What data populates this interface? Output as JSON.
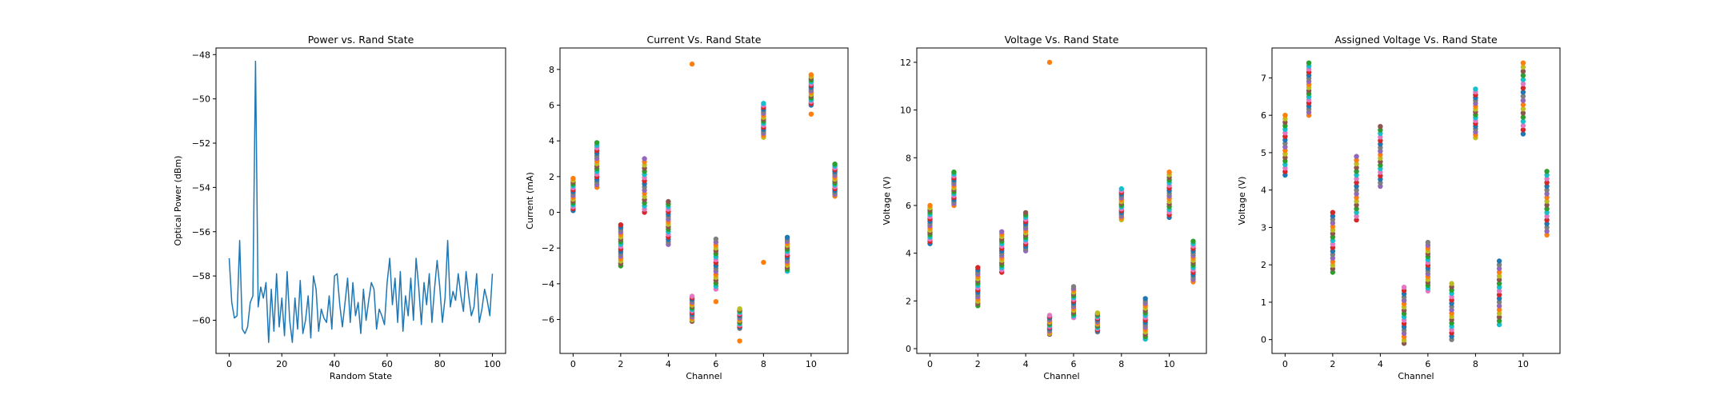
{
  "chart_data": [
    {
      "type": "line",
      "title": "Power vs. Rand State",
      "xlabel": "Random State",
      "ylabel": "Optical Power (dBm)",
      "xlim": [
        -5,
        105
      ],
      "ylim": [
        -61.5,
        -47.7
      ],
      "xticks": [
        0,
        20,
        40,
        60,
        80,
        100
      ],
      "yticks": [
        -60,
        -58,
        -56,
        -54,
        -52,
        -50,
        -48
      ],
      "grid": false,
      "color": "#1f77b4",
      "series": [
        {
          "x": [
            0,
            1,
            2,
            3,
            4,
            5,
            6,
            7,
            8,
            9,
            10,
            11,
            12,
            13,
            14,
            15,
            16,
            17,
            18,
            19,
            20,
            21,
            22,
            23,
            24,
            25,
            26,
            27,
            28,
            29,
            30,
            31,
            32,
            33,
            34,
            35,
            36,
            37,
            38,
            39,
            40,
            41,
            42,
            43,
            44,
            45,
            46,
            47,
            48,
            49,
            50,
            51,
            52,
            53,
            54,
            55,
            56,
            57,
            58,
            59,
            60,
            61,
            62,
            63,
            64,
            65,
            66,
            67,
            68,
            69,
            70,
            71,
            72,
            73,
            74,
            75,
            76,
            77,
            78,
            79,
            80,
            81,
            82,
            83,
            84,
            85,
            86,
            87,
            88,
            89,
            90,
            91,
            92,
            93,
            94,
            95,
            96,
            97,
            98,
            99,
            100
          ],
          "y": [
            -57.2,
            -59.2,
            -59.9,
            -59.8,
            -56.4,
            -60.4,
            -60.6,
            -60.3,
            -59.2,
            -58.9,
            -48.3,
            -59.4,
            -58.5,
            -59.0,
            -58.3,
            -61.0,
            -58.6,
            -60.5,
            -57.9,
            -60.3,
            -59.0,
            -60.7,
            -57.8,
            -60.0,
            -61.0,
            -59.0,
            -60.4,
            -58.2,
            -60.6,
            -60.0,
            -58.9,
            -60.8,
            -58.0,
            -58.6,
            -60.5,
            -59.5,
            -59.9,
            -60.1,
            -58.9,
            -60.4,
            -58.0,
            -57.9,
            -59.3,
            -60.3,
            -59.2,
            -58.1,
            -60.1,
            -58.3,
            -59.8,
            -59.2,
            -60.6,
            -58.6,
            -60.0,
            -59.1,
            -58.3,
            -58.6,
            -60.4,
            -59.5,
            -59.8,
            -60.2,
            -58.3,
            -57.2,
            -59.3,
            -58.1,
            -60.1,
            -57.8,
            -60.5,
            -58.9,
            -59.8,
            -58.1,
            -60.0,
            -57.2,
            -58.5,
            -60.2,
            -58.3,
            -59.3,
            -57.9,
            -60.1,
            -58.6,
            -57.3,
            -58.5,
            -60.1,
            -59.0,
            -56.4,
            -59.4,
            -58.7,
            -59.1,
            -57.9,
            -58.9,
            -59.6,
            -57.8,
            -58.9,
            -59.8,
            -59.4,
            -57.9,
            -60.1,
            -59.5,
            -58.6,
            -59.1,
            -59.8,
            -57.9
          ]
        }
      ]
    },
    {
      "type": "scatter",
      "title": "Current Vs. Rand State",
      "xlabel": "Channel",
      "ylabel": "Current (mA)",
      "xlim": [
        -0.55,
        11.55
      ],
      "ylim": [
        -7.9,
        9.2
      ],
      "xticks": [
        0,
        2,
        4,
        6,
        8,
        10
      ],
      "yticks": [
        -6,
        -4,
        -2,
        0,
        2,
        4,
        6,
        8
      ],
      "grid": false,
      "ranges": [
        [
          0.1,
          1.9
        ],
        [
          1.4,
          3.9
        ],
        [
          -3.0,
          -0.7
        ],
        [
          0.0,
          3.0
        ],
        [
          -1.8,
          0.6
        ],
        [
          -6.1,
          -4.7
        ],
        [
          -4.3,
          -1.5
        ],
        [
          -6.5,
          -5.4
        ],
        [
          4.2,
          6.1
        ],
        [
          -3.3,
          -1.4
        ],
        [
          6.0,
          7.7
        ],
        [
          0.9,
          2.7
        ]
      ],
      "outliers": [
        {
          "x": 5,
          "y": 8.3
        },
        {
          "x": 6,
          "y": -5.0
        },
        {
          "x": 7,
          "y": -7.2
        },
        {
          "x": 8,
          "y": -2.8
        },
        {
          "x": 10,
          "y": 5.5
        }
      ]
    },
    {
      "type": "scatter",
      "title": "Voltage Vs. Rand State",
      "xlabel": "Channel",
      "ylabel": "Voltage (V)",
      "xlim": [
        -0.55,
        11.55
      ],
      "ylim": [
        -0.2,
        12.6
      ],
      "xticks": [
        0,
        2,
        4,
        6,
        8,
        10
      ],
      "yticks": [
        0,
        2,
        4,
        6,
        8,
        10,
        12
      ],
      "grid": false,
      "ranges": [
        [
          4.4,
          6.0
        ],
        [
          6.0,
          7.4
        ],
        [
          1.8,
          3.4
        ],
        [
          3.2,
          4.9
        ],
        [
          4.1,
          5.7
        ],
        [
          0.6,
          1.4
        ],
        [
          1.3,
          2.6
        ],
        [
          0.7,
          1.5
        ],
        [
          5.4,
          6.7
        ],
        [
          0.4,
          2.1
        ],
        [
          5.5,
          7.4
        ],
        [
          2.8,
          4.5
        ]
      ],
      "outliers": [
        {
          "x": 5,
          "y": 12.0
        }
      ]
    },
    {
      "type": "scatter",
      "title": "Assigned Voltage Vs. Rand State",
      "xlabel": "Channel",
      "ylabel": "Voltage (V)",
      "xlim": [
        -0.55,
        11.55
      ],
      "ylim": [
        -0.37,
        7.8
      ],
      "xticks": [
        0,
        2,
        4,
        6,
        8,
        10
      ],
      "yticks": [
        0,
        1,
        2,
        3,
        4,
        5,
        6,
        7
      ],
      "grid": false,
      "ranges": [
        [
          4.4,
          6.0
        ],
        [
          6.0,
          7.4
        ],
        [
          1.8,
          3.4
        ],
        [
          3.2,
          4.9
        ],
        [
          4.1,
          5.7
        ],
        [
          -0.1,
          1.4
        ],
        [
          1.3,
          2.6
        ],
        [
          0.0,
          1.5
        ],
        [
          5.4,
          6.7
        ],
        [
          0.4,
          2.1
        ],
        [
          5.5,
          7.4
        ],
        [
          2.8,
          4.5
        ]
      ],
      "outliers": []
    }
  ],
  "palette": [
    "#1f77b4",
    "#ff7f0e",
    "#2ca02c",
    "#d62728",
    "#9467bd",
    "#8c564b",
    "#e377c2",
    "#7f7f7f",
    "#bcbd22",
    "#17becf"
  ]
}
